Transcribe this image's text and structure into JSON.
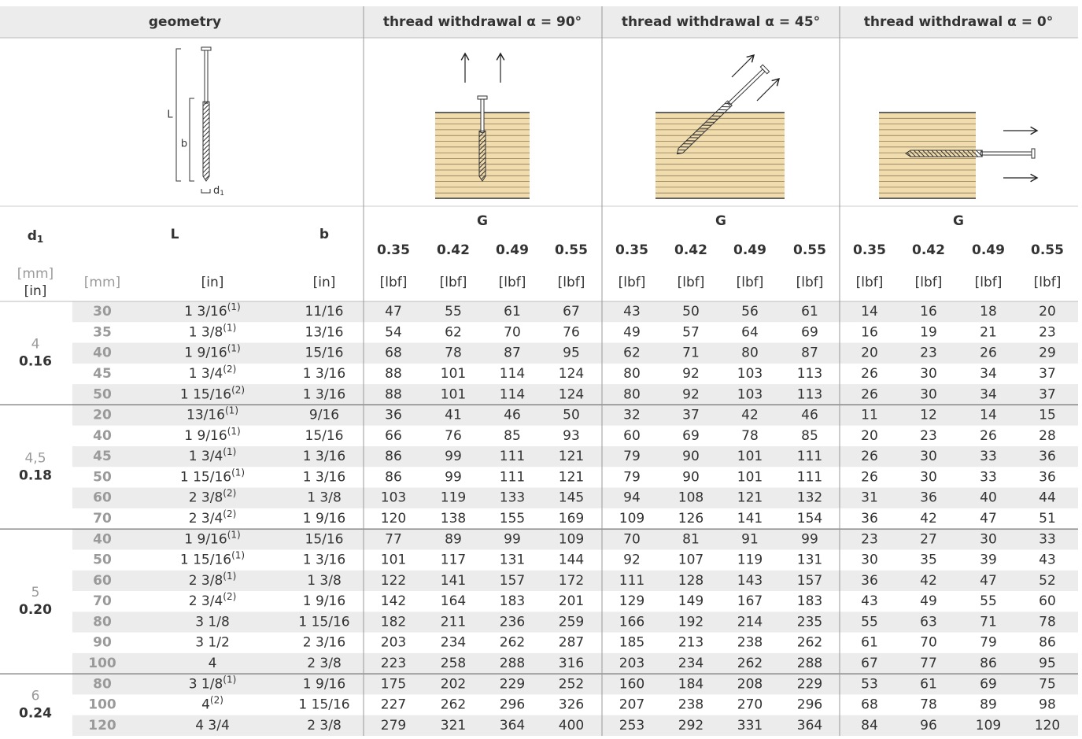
{
  "header": {
    "geometry": "geometry",
    "groups": [
      "thread withdrawal α = 90°",
      "thread withdrawal α = 45°",
      "thread withdrawal α = 0°"
    ]
  },
  "diagram": {
    "L": "L",
    "b": "b",
    "d": "d",
    "d_sub": "1"
  },
  "columns": {
    "d": "d",
    "d_sub": "1",
    "L": "L",
    "b": "b",
    "G": "G",
    "G_values": [
      0.35,
      0.42,
      0.49,
      0.55
    ],
    "d_units": [
      "[mm]",
      "[in]"
    ],
    "units": [
      "[mm]",
      "[in]",
      "[in]"
    ],
    "force_unit": "[lbf]"
  },
  "groups": [
    {
      "d_mm": "4",
      "d_in": "0.16",
      "rows": [
        {
          "L_mm": 30,
          "L_in": "1 3/16",
          "note": "(1)",
          "b": "11/16",
          "values": [
            47,
            55,
            61,
            67,
            43,
            50,
            56,
            61,
            14,
            16,
            18,
            20
          ]
        },
        {
          "L_mm": 35,
          "L_in": "1 3/8",
          "note": "(1)",
          "b": "13/16",
          "values": [
            54,
            62,
            70,
            76,
            49,
            57,
            64,
            69,
            16,
            19,
            21,
            23
          ]
        },
        {
          "L_mm": 40,
          "L_in": "1 9/16",
          "note": "(1)",
          "b": "15/16",
          "values": [
            68,
            78,
            87,
            95,
            62,
            71,
            80,
            87,
            20,
            23,
            26,
            29
          ]
        },
        {
          "L_mm": 45,
          "L_in": "1 3/4",
          "note": "(2)",
          "b": "1 3/16",
          "values": [
            88,
            101,
            114,
            124,
            80,
            92,
            103,
            113,
            26,
            30,
            34,
            37
          ]
        },
        {
          "L_mm": 50,
          "L_in": "1 15/16",
          "note": "(2)",
          "b": "1 3/16",
          "values": [
            88,
            101,
            114,
            124,
            80,
            92,
            103,
            113,
            26,
            30,
            34,
            37
          ]
        }
      ]
    },
    {
      "d_mm": "4,5",
      "d_in": "0.18",
      "rows": [
        {
          "L_mm": 20,
          "L_in": "13/16",
          "note": "(1)",
          "b": "9/16",
          "values": [
            36,
            41,
            46,
            50,
            32,
            37,
            42,
            46,
            11,
            12,
            14,
            15
          ]
        },
        {
          "L_mm": 40,
          "L_in": "1 9/16",
          "note": "(1)",
          "b": "15/16",
          "values": [
            66,
            76,
            85,
            93,
            60,
            69,
            78,
            85,
            20,
            23,
            26,
            28
          ]
        },
        {
          "L_mm": 45,
          "L_in": "1 3/4",
          "note": "(1)",
          "b": "1 3/16",
          "values": [
            86,
            99,
            111,
            121,
            79,
            90,
            101,
            111,
            26,
            30,
            33,
            36
          ]
        },
        {
          "L_mm": 50,
          "L_in": "1 15/16",
          "note": "(1)",
          "b": "1 3/16",
          "values": [
            86,
            99,
            111,
            121,
            79,
            90,
            101,
            111,
            26,
            30,
            33,
            36
          ]
        },
        {
          "L_mm": 60,
          "L_in": "2 3/8",
          "note": "(2)",
          "b": "1 3/8",
          "values": [
            103,
            119,
            133,
            145,
            94,
            108,
            121,
            132,
            31,
            36,
            40,
            44
          ]
        },
        {
          "L_mm": 70,
          "L_in": "2 3/4",
          "note": "(2)",
          "b": "1 9/16",
          "values": [
            120,
            138,
            155,
            169,
            109,
            126,
            141,
            154,
            36,
            42,
            47,
            51
          ]
        }
      ]
    },
    {
      "d_mm": "5",
      "d_in": "0.20",
      "rows": [
        {
          "L_mm": 40,
          "L_in": "1 9/16",
          "note": "(1)",
          "b": "15/16",
          "values": [
            77,
            89,
            99,
            109,
            70,
            81,
            91,
            99,
            23,
            27,
            30,
            33
          ]
        },
        {
          "L_mm": 50,
          "L_in": "1 15/16",
          "note": "(1)",
          "b": "1 3/16",
          "values": [
            101,
            117,
            131,
            144,
            92,
            107,
            119,
            131,
            30,
            35,
            39,
            43
          ]
        },
        {
          "L_mm": 60,
          "L_in": "2 3/8",
          "note": "(1)",
          "b": "1 3/8",
          "values": [
            122,
            141,
            157,
            172,
            111,
            128,
            143,
            157,
            36,
            42,
            47,
            52
          ]
        },
        {
          "L_mm": 70,
          "L_in": "2 3/4",
          "note": "(2)",
          "b": "1 9/16",
          "values": [
            142,
            164,
            183,
            201,
            129,
            149,
            167,
            183,
            43,
            49,
            55,
            60
          ]
        },
        {
          "L_mm": 80,
          "L_in": "3 1/8",
          "b": "1 15/16",
          "values": [
            182,
            211,
            236,
            259,
            166,
            192,
            214,
            235,
            55,
            63,
            71,
            78
          ]
        },
        {
          "L_mm": 90,
          "L_in": "3 1/2",
          "b": "2 3/16",
          "values": [
            203,
            234,
            262,
            287,
            185,
            213,
            238,
            262,
            61,
            70,
            79,
            86
          ]
        },
        {
          "L_mm": 100,
          "L_in": "4",
          "b": "2 3/8",
          "values": [
            223,
            258,
            288,
            316,
            203,
            234,
            262,
            288,
            67,
            77,
            86,
            95
          ]
        }
      ]
    },
    {
      "d_mm": "6",
      "d_in": "0.24",
      "rows": [
        {
          "L_mm": 80,
          "L_in": "3 1/8",
          "note": "(1)",
          "b": "1 9/16",
          "values": [
            175,
            202,
            229,
            252,
            160,
            184,
            208,
            229,
            53,
            61,
            69,
            75
          ]
        },
        {
          "L_mm": 100,
          "L_in": "4",
          "note": "(2)",
          "b": "1 15/16",
          "values": [
            227,
            262,
            296,
            326,
            207,
            238,
            270,
            296,
            68,
            78,
            89,
            98
          ]
        },
        {
          "L_mm": 120,
          "L_in": "4 3/4",
          "b": "2 3/8",
          "values": [
            279,
            321,
            364,
            400,
            253,
            292,
            331,
            364,
            84,
            96,
            109,
            120
          ]
        }
      ]
    }
  ]
}
